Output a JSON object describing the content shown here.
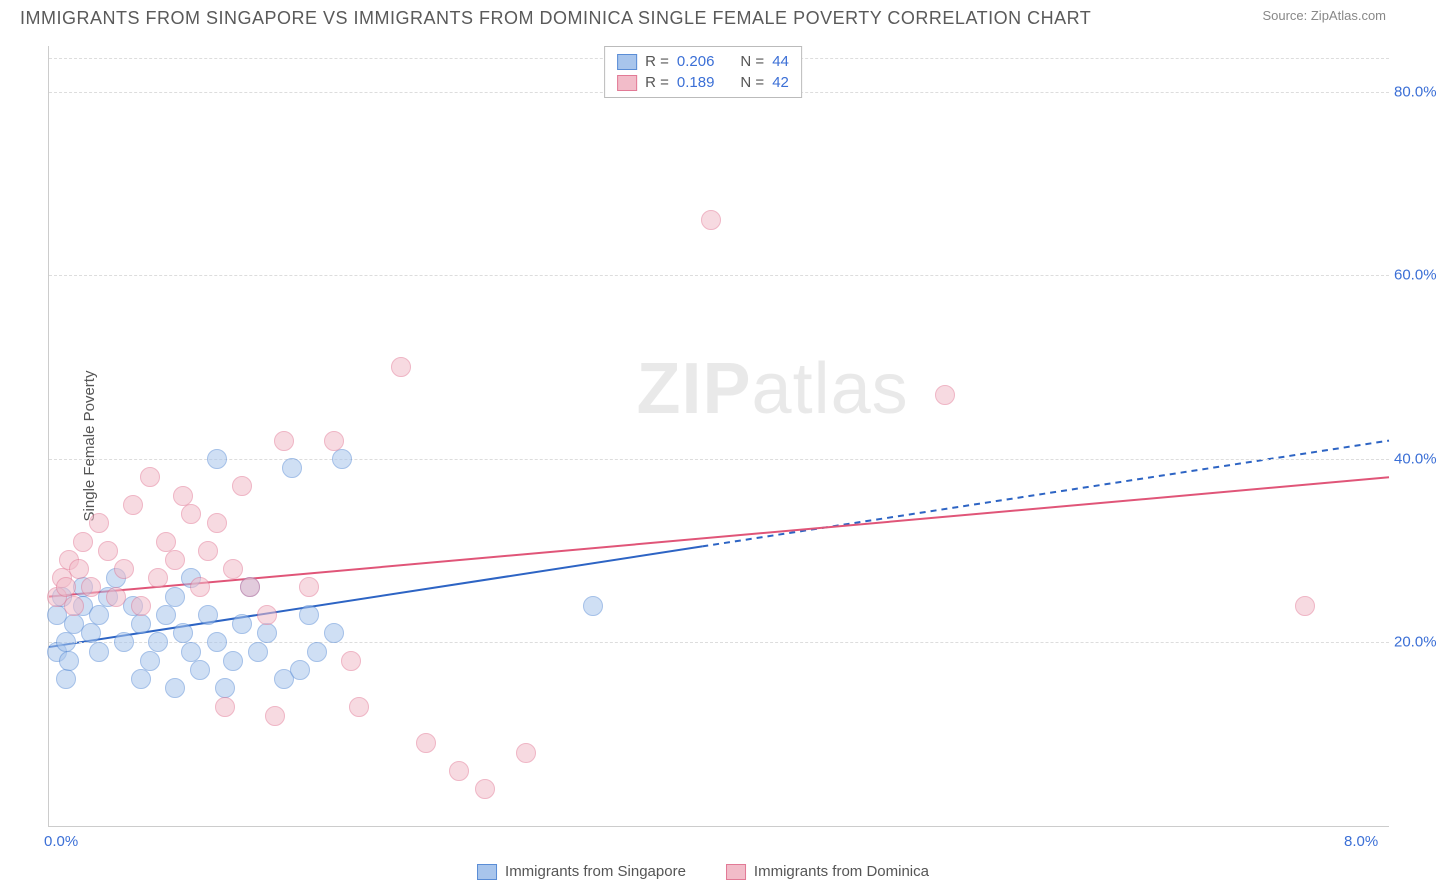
{
  "title": "IMMIGRANTS FROM SINGAPORE VS IMMIGRANTS FROM DOMINICA SINGLE FEMALE POVERTY CORRELATION CHART",
  "source": "Source: ZipAtlas.com",
  "ylabel": "Single Female Poverty",
  "watermark_bold": "ZIP",
  "watermark_rest": "atlas",
  "chart": {
    "type": "scatter",
    "xlim": [
      0,
      8
    ],
    "ylim": [
      0,
      85
    ],
    "xticks": [
      {
        "v": 0,
        "label": "0.0%"
      },
      {
        "v": 8,
        "label": "8.0%"
      }
    ],
    "yticks": [
      20,
      40,
      60,
      80
    ],
    "ytick_suffix": ".0%",
    "grid_color": "#dddddd",
    "axis_color": "#cccccc",
    "background_color": "#ffffff",
    "point_radius": 9,
    "point_opacity": 0.55,
    "series": [
      {
        "id": "singapore",
        "label": "Immigrants from Singapore",
        "fill": "#a8c5ec",
        "stroke": "#5a8dd6",
        "R": "0.206",
        "N": "44",
        "trend": {
          "x1": 0,
          "y1": 19.5,
          "x2": 8,
          "y2": 42,
          "solid_until_x": 3.9,
          "color": "#2d64c4",
          "width": 2
        },
        "points": [
          [
            0.05,
            19
          ],
          [
            0.05,
            23
          ],
          [
            0.08,
            25
          ],
          [
            0.1,
            20
          ],
          [
            0.15,
            22
          ],
          [
            0.1,
            16
          ],
          [
            0.12,
            18
          ],
          [
            0.2,
            24
          ],
          [
            0.2,
            26
          ],
          [
            0.25,
            21
          ],
          [
            0.3,
            23
          ],
          [
            0.3,
            19
          ],
          [
            0.35,
            25
          ],
          [
            0.4,
            27
          ],
          [
            0.45,
            20
          ],
          [
            0.5,
            24
          ],
          [
            0.55,
            22
          ],
          [
            0.55,
            16
          ],
          [
            0.6,
            18
          ],
          [
            0.65,
            20
          ],
          [
            0.7,
            23
          ],
          [
            0.75,
            25
          ],
          [
            0.75,
            15
          ],
          [
            0.8,
            21
          ],
          [
            0.85,
            19
          ],
          [
            0.85,
            27
          ],
          [
            0.9,
            17
          ],
          [
            0.95,
            23
          ],
          [
            1.0,
            20
          ],
          [
            1.0,
            40
          ],
          [
            1.05,
            15
          ],
          [
            1.1,
            18
          ],
          [
            1.15,
            22
          ],
          [
            1.2,
            26
          ],
          [
            1.25,
            19
          ],
          [
            1.3,
            21
          ],
          [
            1.4,
            16
          ],
          [
            1.45,
            39
          ],
          [
            1.5,
            17
          ],
          [
            1.55,
            23
          ],
          [
            1.6,
            19
          ],
          [
            1.7,
            21
          ],
          [
            1.75,
            40
          ],
          [
            3.25,
            24
          ]
        ]
      },
      {
        "id": "dominica",
        "label": "Immigrants from Dominica",
        "fill": "#f2bcc9",
        "stroke": "#e27a96",
        "R": "0.189",
        "N": "42",
        "trend": {
          "x1": 0,
          "y1": 25,
          "x2": 8,
          "y2": 38,
          "solid_until_x": 8,
          "color": "#e05578",
          "width": 2
        },
        "points": [
          [
            0.05,
            25
          ],
          [
            0.08,
            27
          ],
          [
            0.1,
            26
          ],
          [
            0.12,
            29
          ],
          [
            0.15,
            24
          ],
          [
            0.18,
            28
          ],
          [
            0.2,
            31
          ],
          [
            0.25,
            26
          ],
          [
            0.3,
            33
          ],
          [
            0.35,
            30
          ],
          [
            0.4,
            25
          ],
          [
            0.45,
            28
          ],
          [
            0.5,
            35
          ],
          [
            0.55,
            24
          ],
          [
            0.6,
            38
          ],
          [
            0.65,
            27
          ],
          [
            0.7,
            31
          ],
          [
            0.75,
            29
          ],
          [
            0.8,
            36
          ],
          [
            0.85,
            34
          ],
          [
            0.9,
            26
          ],
          [
            0.95,
            30
          ],
          [
            1.0,
            33
          ],
          [
            1.05,
            13
          ],
          [
            1.1,
            28
          ],
          [
            1.15,
            37
          ],
          [
            1.2,
            26
          ],
          [
            1.3,
            23
          ],
          [
            1.35,
            12
          ],
          [
            1.4,
            42
          ],
          [
            1.55,
            26
          ],
          [
            1.7,
            42
          ],
          [
            1.8,
            18
          ],
          [
            1.85,
            13
          ],
          [
            2.1,
            50
          ],
          [
            2.25,
            9
          ],
          [
            2.45,
            6
          ],
          [
            2.6,
            4
          ],
          [
            2.85,
            8
          ],
          [
            3.95,
            66
          ],
          [
            5.35,
            47
          ],
          [
            7.5,
            24
          ]
        ]
      }
    ]
  },
  "stats_labels": {
    "R": "R =",
    "N": "N ="
  }
}
